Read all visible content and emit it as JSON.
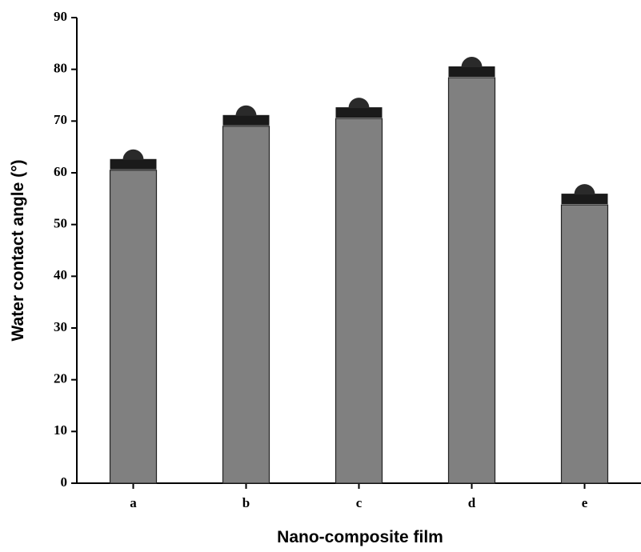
{
  "chart_data": {
    "type": "bar",
    "x_label": "Nano-composite film",
    "y_label": "Water contact angle (°)",
    "categories": [
      "a",
      "b",
      "c",
      "d",
      "e"
    ],
    "values": [
      60.5,
      69,
      70.5,
      78.4,
      53.8
    ],
    "color": "#808080",
    "ylim": [
      0,
      90
    ],
    "yticks": [
      0,
      10,
      20,
      30,
      40,
      50,
      60,
      70,
      80,
      90
    ],
    "grid": false
  }
}
